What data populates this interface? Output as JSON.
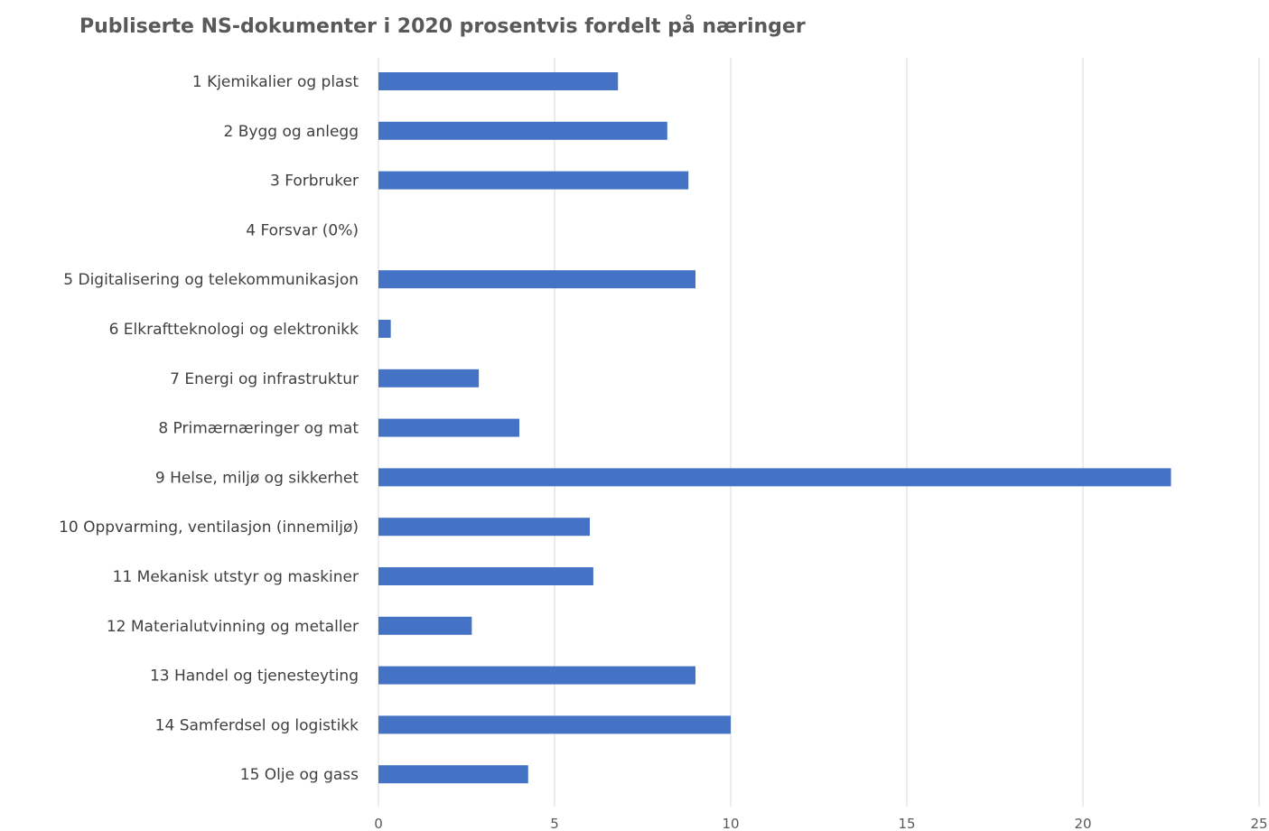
{
  "chart_data": {
    "type": "bar",
    "orientation": "horizontal",
    "title": "Publiserte NS-dokumenter i 2020 prosentvis fordelt på næringer",
    "xlabel": "",
    "ylabel": "",
    "categories": [
      "1 Kjemikalier og plast",
      "2 Bygg og anlegg",
      "3 Forbruker",
      "4 Forsvar (0%)",
      "5 Digitalisering og telekommunikasjon",
      "6 Elkraftteknologi og elektronikk",
      "7 Energi og infrastruktur",
      "8 Primærnæringer og mat",
      "9 Helse, miljø og sikkerhet",
      "10 Oppvarming, ventilasjon (innemiljø)",
      "11 Mekanisk utstyr og maskiner",
      "12 Materialutvinning og metaller",
      "13 Handel og tjenesteyting",
      "14 Samferdsel og logistikk",
      "15 Olje og gass"
    ],
    "values": [
      6.8,
      8.2,
      8.8,
      0,
      9.0,
      0.35,
      2.85,
      4.0,
      22.5,
      6.0,
      6.1,
      2.65,
      9.0,
      10.0,
      4.25
    ],
    "xlim": [
      0,
      25
    ],
    "xticks": [
      "0",
      "5",
      "10",
      "15",
      "20",
      "25"
    ],
    "grid": "vertical",
    "legend": "none",
    "bar_color": "#4472c4"
  }
}
